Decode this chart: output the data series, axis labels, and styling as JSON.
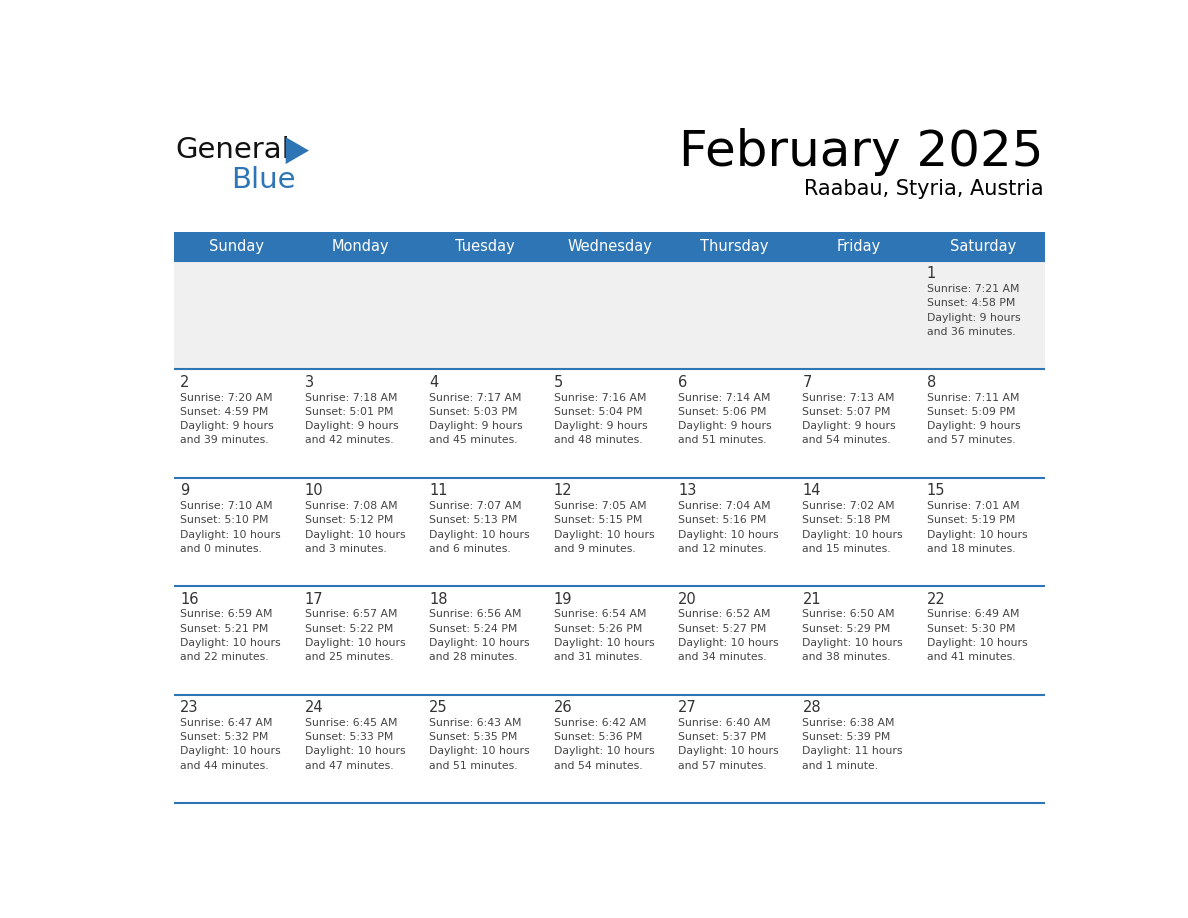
{
  "title": "February 2025",
  "subtitle": "Raabau, Styria, Austria",
  "header_bg": "#2E75B6",
  "header_text_color": "#FFFFFF",
  "days_of_week": [
    "Sunday",
    "Monday",
    "Tuesday",
    "Wednesday",
    "Thursday",
    "Friday",
    "Saturday"
  ],
  "cell_bg_white": "#FFFFFF",
  "cell_bg_gray": "#F0F0F0",
  "row_line_color": "#2E75B6",
  "separator_color": "#AAAACC",
  "text_color": "#444444",
  "day_num_color": "#333333",
  "logo_general_color": "#111111",
  "logo_blue_color": "#2E75B6",
  "calendar_data": [
    [
      null,
      null,
      null,
      null,
      null,
      null,
      {
        "day": 1,
        "sunrise": "7:21 AM",
        "sunset": "4:58 PM",
        "daylight": "9 hours and 36 minutes."
      }
    ],
    [
      {
        "day": 2,
        "sunrise": "7:20 AM",
        "sunset": "4:59 PM",
        "daylight": "9 hours and 39 minutes."
      },
      {
        "day": 3,
        "sunrise": "7:18 AM",
        "sunset": "5:01 PM",
        "daylight": "9 hours and 42 minutes."
      },
      {
        "day": 4,
        "sunrise": "7:17 AM",
        "sunset": "5:03 PM",
        "daylight": "9 hours and 45 minutes."
      },
      {
        "day": 5,
        "sunrise": "7:16 AM",
        "sunset": "5:04 PM",
        "daylight": "9 hours and 48 minutes."
      },
      {
        "day": 6,
        "sunrise": "7:14 AM",
        "sunset": "5:06 PM",
        "daylight": "9 hours and 51 minutes."
      },
      {
        "day": 7,
        "sunrise": "7:13 AM",
        "sunset": "5:07 PM",
        "daylight": "9 hours and 54 minutes."
      },
      {
        "day": 8,
        "sunrise": "7:11 AM",
        "sunset": "5:09 PM",
        "daylight": "9 hours and 57 minutes."
      }
    ],
    [
      {
        "day": 9,
        "sunrise": "7:10 AM",
        "sunset": "5:10 PM",
        "daylight": "10 hours and 0 minutes."
      },
      {
        "day": 10,
        "sunrise": "7:08 AM",
        "sunset": "5:12 PM",
        "daylight": "10 hours and 3 minutes."
      },
      {
        "day": 11,
        "sunrise": "7:07 AM",
        "sunset": "5:13 PM",
        "daylight": "10 hours and 6 minutes."
      },
      {
        "day": 12,
        "sunrise": "7:05 AM",
        "sunset": "5:15 PM",
        "daylight": "10 hours and 9 minutes."
      },
      {
        "day": 13,
        "sunrise": "7:04 AM",
        "sunset": "5:16 PM",
        "daylight": "10 hours and 12 minutes."
      },
      {
        "day": 14,
        "sunrise": "7:02 AM",
        "sunset": "5:18 PM",
        "daylight": "10 hours and 15 minutes."
      },
      {
        "day": 15,
        "sunrise": "7:01 AM",
        "sunset": "5:19 PM",
        "daylight": "10 hours and 18 minutes."
      }
    ],
    [
      {
        "day": 16,
        "sunrise": "6:59 AM",
        "sunset": "5:21 PM",
        "daylight": "10 hours and 22 minutes."
      },
      {
        "day": 17,
        "sunrise": "6:57 AM",
        "sunset": "5:22 PM",
        "daylight": "10 hours and 25 minutes."
      },
      {
        "day": 18,
        "sunrise": "6:56 AM",
        "sunset": "5:24 PM",
        "daylight": "10 hours and 28 minutes."
      },
      {
        "day": 19,
        "sunrise": "6:54 AM",
        "sunset": "5:26 PM",
        "daylight": "10 hours and 31 minutes."
      },
      {
        "day": 20,
        "sunrise": "6:52 AM",
        "sunset": "5:27 PM",
        "daylight": "10 hours and 34 minutes."
      },
      {
        "day": 21,
        "sunrise": "6:50 AM",
        "sunset": "5:29 PM",
        "daylight": "10 hours and 38 minutes."
      },
      {
        "day": 22,
        "sunrise": "6:49 AM",
        "sunset": "5:30 PM",
        "daylight": "10 hours and 41 minutes."
      }
    ],
    [
      {
        "day": 23,
        "sunrise": "6:47 AM",
        "sunset": "5:32 PM",
        "daylight": "10 hours and 44 minutes."
      },
      {
        "day": 24,
        "sunrise": "6:45 AM",
        "sunset": "5:33 PM",
        "daylight": "10 hours and 47 minutes."
      },
      {
        "day": 25,
        "sunrise": "6:43 AM",
        "sunset": "5:35 PM",
        "daylight": "10 hours and 51 minutes."
      },
      {
        "day": 26,
        "sunrise": "6:42 AM",
        "sunset": "5:36 PM",
        "daylight": "10 hours and 54 minutes."
      },
      {
        "day": 27,
        "sunrise": "6:40 AM",
        "sunset": "5:37 PM",
        "daylight": "10 hours and 57 minutes."
      },
      {
        "day": 28,
        "sunrise": "6:38 AM",
        "sunset": "5:39 PM",
        "daylight": "11 hours and 1 minute."
      },
      null
    ]
  ]
}
